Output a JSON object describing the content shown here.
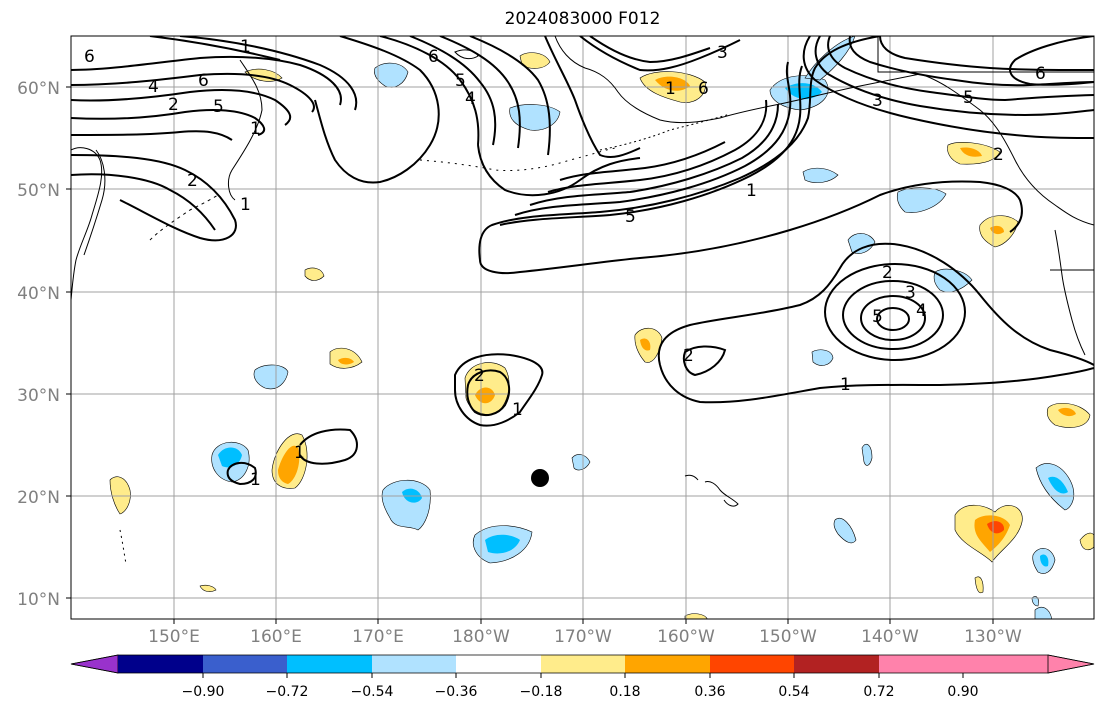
{
  "title": "2024083000 F012",
  "latitude_labels": [
    "60°N",
    "50°N",
    "40°N",
    "30°N",
    "20°N",
    "10°N"
  ],
  "longitude_labels": [
    "150°E",
    "160°E",
    "170°E",
    "180°W",
    "170°W",
    "160°W",
    "150°W",
    "140°W",
    "130°W"
  ],
  "colorbar": {
    "tick_labels": [
      "−0.90",
      "−0.72",
      "−0.54",
      "−0.36",
      "−0.18",
      "0.18",
      "0.36",
      "0.54",
      "0.72",
      "0.90"
    ],
    "colors": [
      "#9932cc",
      "#00008b",
      "#3a5fcd",
      "#00bfff",
      "#b0e2ff",
      "#ffffff",
      "#ffec8b",
      "#ffa500",
      "#ff4500",
      "#b22222",
      "#ff82ab"
    ]
  },
  "contour_labels": [
    "6",
    "1",
    "4",
    "2",
    "6",
    "5",
    "1",
    "2",
    "1",
    "6",
    "5",
    "4",
    "3",
    "6",
    "1",
    "3",
    "5",
    "2",
    "6",
    "1",
    "5",
    "2",
    "3",
    "4",
    "5",
    "2",
    "1",
    "2",
    "1",
    "1",
    "1"
  ],
  "marker": "storm-center-dot"
}
